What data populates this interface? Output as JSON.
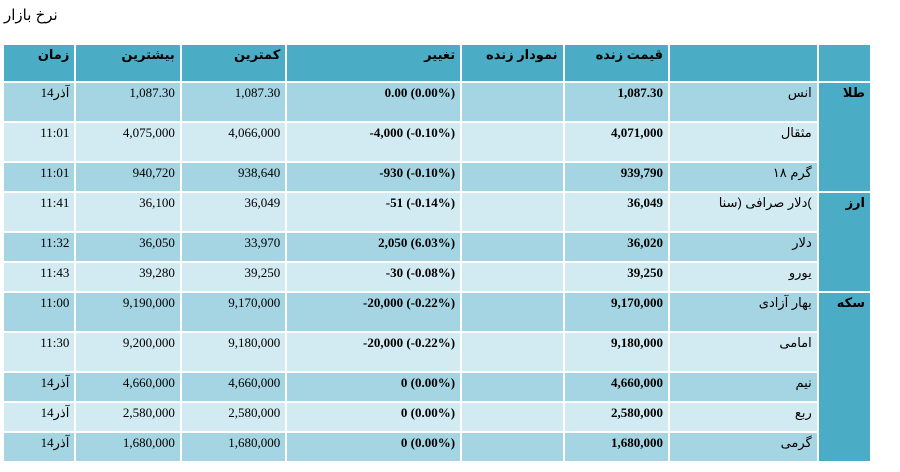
{
  "page": {
    "title": "نرخ بازار"
  },
  "headers": {
    "time": "زمان",
    "high": "بیشترین",
    "low": "کمترین",
    "change": "تغییر",
    "live_chart": "نمودار زنده",
    "live_price": "قیمت زنده",
    "name": "",
    "category": ""
  },
  "categories": [
    {
      "label": "طلا",
      "rows": [
        {
          "name": "انس",
          "price": "1,087.30",
          "change": "0.00 (0.00%)",
          "low": "1,087.30",
          "high": "1,087.30",
          "time": "14آذر"
        },
        {
          "name": "مثقال",
          "price": "4,071,000",
          "change": "-4,000 (-0.10%)",
          "low": "4,066,000",
          "high": "4,075,000",
          "time": "11:01"
        },
        {
          "name": "گرم ۱۸",
          "price": "939,790",
          "change": "-930 (-0.10%)",
          "low": "938,640",
          "high": "940,720",
          "time": "11:01"
        }
      ]
    },
    {
      "label": "ارز",
      "rows": [
        {
          "name": "دلار صرافی (سنا(",
          "price": "36,049",
          "change": "-51 (-0.14%)",
          "low": "36,049",
          "high": "36,100",
          "time": "11:41"
        },
        {
          "name": "دلار",
          "price": "36,020",
          "change": "2,050 (6.03%)",
          "low": "33,970",
          "high": "36,050",
          "time": "11:32"
        },
        {
          "name": "یورو",
          "price": "39,250",
          "change": "-30 (-0.08%)",
          "low": "39,250",
          "high": "39,280",
          "time": "11:43"
        }
      ]
    },
    {
      "label": "سکه",
      "rows": [
        {
          "name": "بهار آزادی",
          "price": "9,170,000",
          "change": "-20,000 (-0.22%)",
          "low": "9,170,000",
          "high": "9,190,000",
          "time": "11:00"
        },
        {
          "name": "امامی",
          "price": "9,180,000",
          "change": "-20,000 (-0.22%)",
          "low": "9,180,000",
          "high": "9,200,000",
          "time": "11:30"
        },
        {
          "name": "نیم",
          "price": "4,660,000",
          "change": "0 (0.00%)",
          "low": "4,660,000",
          "high": "4,660,000",
          "time": "14آذر"
        },
        {
          "name": "ربع",
          "price": "2,580,000",
          "change": "0 (0.00%)",
          "low": "2,580,000",
          "high": "2,580,000",
          "time": "14آذر"
        },
        {
          "name": "گرمی",
          "price": "1,680,000",
          "change": "0 (0.00%)",
          "low": "1,680,000",
          "high": "1,680,000",
          "time": "14آذر"
        }
      ]
    }
  ]
}
